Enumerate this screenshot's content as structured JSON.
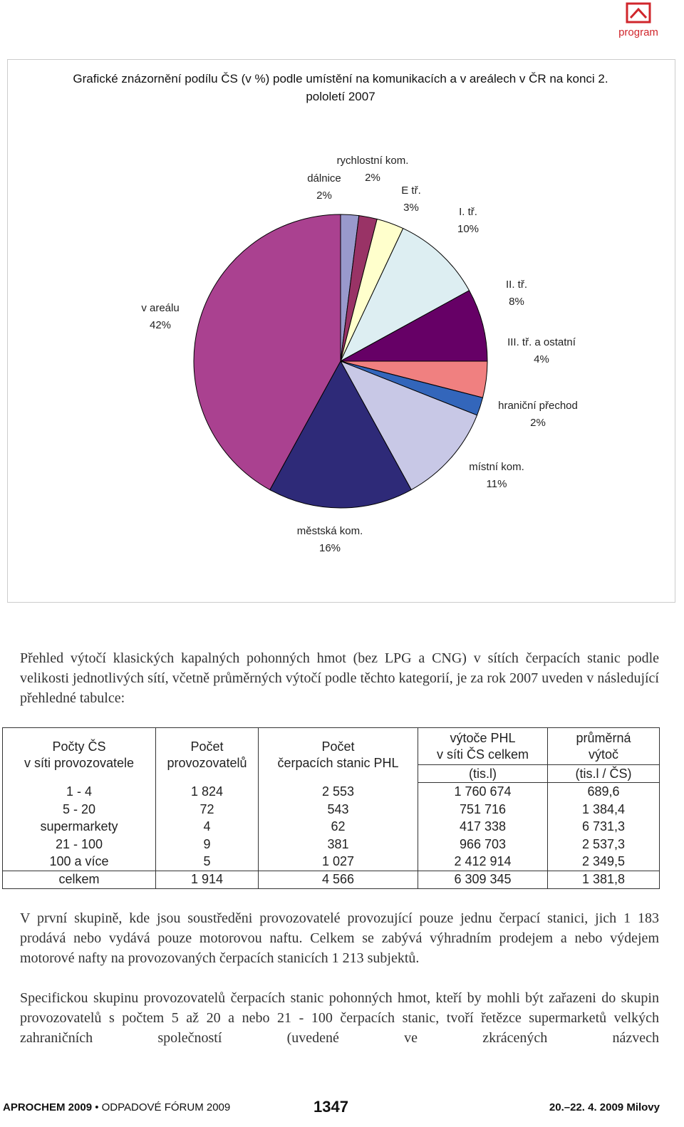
{
  "header": {
    "logo_text": "program"
  },
  "chart_data": {
    "type": "pie",
    "title": "Grafické znázornění podílu ČS (v %) podle umístění na komunikacích a v areálech v ČR na konci 2. pololetí 2007",
    "categories": [
      "dálnice",
      "rychlostní kom.",
      "E tř.",
      "I. tř.",
      "II. tř.",
      "III. tř. a ostatní",
      "hraniční přechod",
      "místní kom.",
      "městská kom.",
      "v areálu"
    ],
    "values": [
      2,
      2,
      3,
      10,
      8,
      4,
      2,
      11,
      16,
      42
    ],
    "value_labels": [
      "2%",
      "2%",
      "3%",
      "10%",
      "8%",
      "4%",
      "2%",
      "11%",
      "16%",
      "42%"
    ],
    "colors": [
      "#9999cc",
      "#993366",
      "#ffffcc",
      "#ddeef2",
      "#660066",
      "#f08080",
      "#3366bb",
      "#c8c8e6",
      "#2e2a78",
      "#aa4190"
    ]
  },
  "paragraphs": [
    "Přehled výtočí klasických kapalných pohonných hmot (bez LPG a CNG) v sítích čerpacích stanic podle velikosti jednotlivých sítí, včetně průměrných výtočí podle těchto kategorií, je za rok 2007 uveden v následující přehledné tabulce:",
    "V první skupině, kde jsou soustředěni provozovatelé provozující pouze jednu čerpací stanici, jich 1 183 prodává nebo vydává pouze motorovou naftu. Celkem se zabývá výhradním prodejem a nebo výdejem motorové nafty na provozovaných čerpacích stanicích 1 213 subjektů.",
    "Specifickou skupinu provozovatelů čerpacích stanic pohonných hmot, kteří by mohli být zařazeni do skupin provozovatelů s počtem 5 až 20 a nebo 21 - 100 čerpacích stanic, tvoří řetězce supermarketů velkých zahraničních společností (uvedené ve zkrácených názvech"
  ],
  "table": {
    "header": [
      [
        "Počty ČS",
        "v síti provozovatele"
      ],
      [
        "Počet",
        "provozovatelů"
      ],
      [
        "Počet",
        "čerpacích stanic PHL"
      ],
      [
        "výtoče PHL",
        "v síti ČS celkem"
      ],
      [
        "průměrná",
        "výtoč"
      ]
    ],
    "units": [
      "(tis.l)",
      "(tis.l / ČS)"
    ],
    "rows": [
      [
        "1 - 4",
        "1 824",
        "2 553",
        "1 760 674",
        "689,6"
      ],
      [
        "5 - 20",
        "72",
        "543",
        "751 716",
        "1 384,4"
      ],
      [
        "supermarkety",
        "4",
        "62",
        "417 338",
        "6 731,3"
      ],
      [
        "21 - 100",
        "9",
        "381",
        "966 703",
        "2 537,3"
      ],
      [
        "100 a více",
        "5",
        "1 027",
        "2 412 914",
        "2 349,5"
      ]
    ],
    "total": [
      "celkem",
      "1 914",
      "4 566",
      "6 309 345",
      "1 381,8"
    ]
  },
  "footer": {
    "left_bold": "APROCHEM 2009",
    "left": "• ODPADOVÉ FÓRUM 2009",
    "page": "1347",
    "right": "20.–22. 4. 2009 Milovy"
  }
}
